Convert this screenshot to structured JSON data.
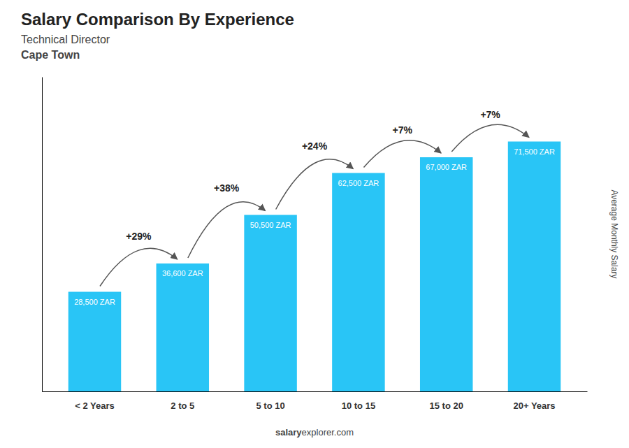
{
  "chart_data": {
    "type": "bar",
    "title": "Salary Comparison By Experience",
    "subtitle": "Technical Director",
    "location": "Cape Town",
    "categories": [
      "< 2 Years",
      "2 to 5",
      "5 to 10",
      "10 to 15",
      "15 to 20",
      "20+ Years"
    ],
    "values": [
      28500,
      36600,
      50500,
      62500,
      67000,
      71500
    ],
    "value_labels": [
      "28,500 ZAR",
      "36,600 ZAR",
      "50,500 ZAR",
      "62,500 ZAR",
      "67,000 ZAR",
      "71,500 ZAR"
    ],
    "data_labels": true,
    "annotations": [
      null,
      "+29%",
      "+38%",
      "+24%",
      "+7%",
      "+7%"
    ],
    "color": "#29c5f6",
    "ylabel": "Average Monthly Salary",
    "footer": [
      "salary",
      "explorer.com"
    ],
    "ylim": [
      0,
      90000
    ],
    "tick_labels": "x",
    "grid": false
  }
}
